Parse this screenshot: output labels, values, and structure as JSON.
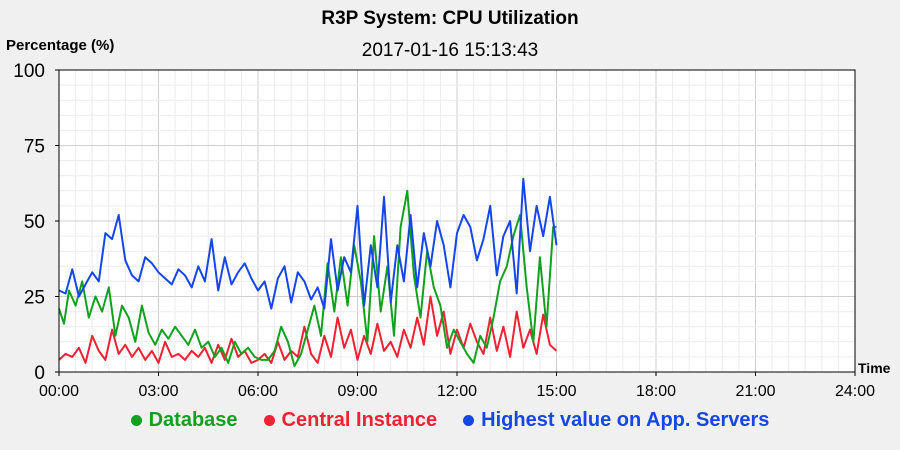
{
  "chart_data": {
    "type": "line",
    "title": "R3P System: CPU Utilization",
    "subtitle": "2017-01-16 15:13:43",
    "ylabel": "Percentage (%)",
    "xlabel": "Time",
    "ylim": [
      0,
      100
    ],
    "xlim": [
      0,
      24
    ],
    "yticks": [
      "0",
      "25",
      "50",
      "75",
      "100"
    ],
    "xticks": [
      "00:00",
      "03:00",
      "06:00",
      "09:00",
      "12:00",
      "15:00",
      "18:00",
      "21:00",
      "24:00"
    ],
    "grid": true,
    "legend_position": "bottom",
    "series": [
      {
        "name": "Database",
        "color": "#11a11f",
        "x": [
          0.0,
          0.15,
          0.3,
          0.5,
          0.7,
          0.9,
          1.1,
          1.3,
          1.5,
          1.7,
          1.9,
          2.1,
          2.3,
          2.5,
          2.7,
          2.9,
          3.1,
          3.3,
          3.5,
          3.7,
          3.9,
          4.1,
          4.3,
          4.5,
          4.7,
          4.9,
          5.1,
          5.3,
          5.5,
          5.7,
          5.9,
          6.1,
          6.3,
          6.5,
          6.7,
          6.9,
          7.1,
          7.3,
          7.5,
          7.7,
          7.9,
          8.1,
          8.3,
          8.5,
          8.7,
          8.9,
          9.1,
          9.3,
          9.5,
          9.7,
          9.9,
          10.1,
          10.3,
          10.5,
          10.7,
          10.9,
          11.1,
          11.3,
          11.5,
          11.7,
          11.9,
          12.1,
          12.3,
          12.5,
          12.7,
          12.9,
          13.1,
          13.3,
          13.5,
          13.7,
          13.9,
          14.1,
          14.3,
          14.5,
          14.7,
          14.9,
          15.0
        ],
        "values": [
          21,
          16,
          27,
          22,
          30,
          18,
          25,
          20,
          28,
          12,
          22,
          18,
          10,
          22,
          13,
          9,
          14,
          11,
          15,
          12,
          9,
          14,
          8,
          10,
          5,
          8,
          3,
          10,
          6,
          8,
          5,
          4,
          4,
          7,
          15,
          10,
          2,
          6,
          14,
          22,
          12,
          36,
          20,
          38,
          22,
          42,
          30,
          10,
          45,
          20,
          35,
          12,
          48,
          60,
          32,
          18,
          40,
          28,
          22,
          8,
          14,
          10,
          6,
          3,
          12,
          8,
          18,
          30,
          35,
          45,
          52,
          28,
          10,
          38,
          15,
          48,
          48
        ]
      },
      {
        "name": "Central Instance",
        "color": "#ee2233",
        "x": [
          0.0,
          0.2,
          0.4,
          0.6,
          0.8,
          1.0,
          1.2,
          1.4,
          1.6,
          1.8,
          2.0,
          2.2,
          2.4,
          2.6,
          2.8,
          3.0,
          3.2,
          3.4,
          3.6,
          3.8,
          4.0,
          4.2,
          4.4,
          4.6,
          4.8,
          5.0,
          5.2,
          5.4,
          5.6,
          5.8,
          6.0,
          6.2,
          6.4,
          6.6,
          6.8,
          7.0,
          7.2,
          7.4,
          7.6,
          7.8,
          8.0,
          8.2,
          8.4,
          8.6,
          8.8,
          9.0,
          9.2,
          9.4,
          9.6,
          9.8,
          10.0,
          10.2,
          10.4,
          10.6,
          10.8,
          11.0,
          11.2,
          11.4,
          11.6,
          11.8,
          12.0,
          12.2,
          12.4,
          12.6,
          12.8,
          13.0,
          13.2,
          13.4,
          13.6,
          13.8,
          14.0,
          14.2,
          14.4,
          14.6,
          14.8,
          15.0
        ],
        "values": [
          4,
          6,
          5,
          8,
          3,
          12,
          7,
          4,
          14,
          6,
          9,
          5,
          8,
          4,
          7,
          3,
          10,
          5,
          6,
          4,
          7,
          5,
          8,
          3,
          9,
          4,
          11,
          5,
          7,
          3,
          4,
          6,
          3,
          10,
          4,
          7,
          5,
          15,
          6,
          3,
          12,
          5,
          18,
          8,
          14,
          4,
          12,
          6,
          16,
          7,
          10,
          5,
          14,
          8,
          18,
          9,
          25,
          12,
          20,
          6,
          14,
          8,
          16,
          10,
          6,
          18,
          7,
          15,
          5,
          20,
          8,
          14,
          6,
          19,
          9,
          7
        ]
      },
      {
        "name": "Highest value on App. Servers",
        "color": "#1646e6",
        "x": [
          0.0,
          0.2,
          0.4,
          0.6,
          0.8,
          1.0,
          1.2,
          1.4,
          1.6,
          1.8,
          2.0,
          2.2,
          2.4,
          2.6,
          2.8,
          3.0,
          3.2,
          3.4,
          3.6,
          3.8,
          4.0,
          4.2,
          4.4,
          4.6,
          4.8,
          5.0,
          5.2,
          5.4,
          5.6,
          5.8,
          6.0,
          6.2,
          6.4,
          6.6,
          6.8,
          7.0,
          7.2,
          7.4,
          7.6,
          7.8,
          8.0,
          8.2,
          8.4,
          8.6,
          8.8,
          9.0,
          9.2,
          9.4,
          9.6,
          9.8,
          10.0,
          10.2,
          10.4,
          10.6,
          10.8,
          11.0,
          11.2,
          11.4,
          11.6,
          11.8,
          12.0,
          12.2,
          12.4,
          12.6,
          12.8,
          13.0,
          13.2,
          13.4,
          13.6,
          13.8,
          14.0,
          14.2,
          14.4,
          14.6,
          14.8,
          15.0
        ],
        "values": [
          27,
          26,
          34,
          25,
          29,
          33,
          30,
          46,
          44,
          52,
          37,
          32,
          30,
          38,
          36,
          33,
          31,
          29,
          34,
          32,
          28,
          35,
          30,
          44,
          27,
          38,
          29,
          33,
          36,
          31,
          27,
          30,
          21,
          31,
          35,
          23,
          33,
          30,
          24,
          28,
          21,
          44,
          27,
          38,
          33,
          55,
          22,
          42,
          28,
          58,
          23,
          42,
          30,
          52,
          28,
          46,
          35,
          50,
          42,
          28,
          46,
          52,
          48,
          37,
          44,
          55,
          32,
          45,
          50,
          26,
          64,
          40,
          55,
          45,
          58,
          42
        ]
      }
    ]
  }
}
